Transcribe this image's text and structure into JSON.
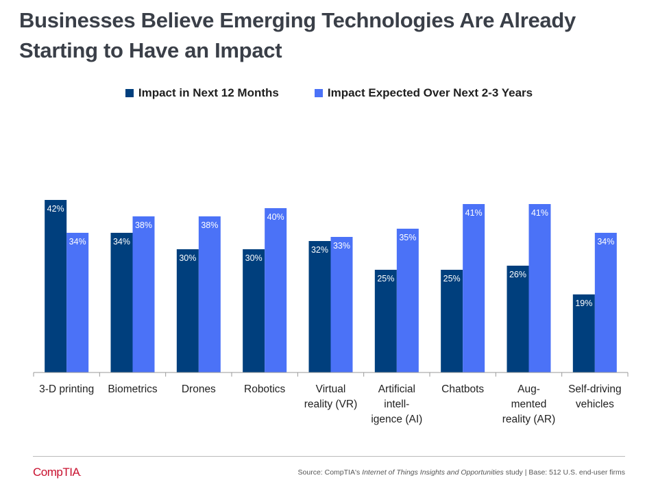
{
  "title_line1": "Businesses Believe Emerging Technologies Are Already",
  "title_line2": "Starting to Have an Impact",
  "footer": {
    "logo": "CompTIA",
    "logo_mark": ".",
    "source_prefix": "Source: CompTIA's ",
    "source_title": "Internet of Things Insights and Opportunities",
    "source_suffix": " study | Base: 512 U.S. end-user firms"
  },
  "colors": {
    "series1": "#003f7d",
    "series2": "#4b72f7",
    "title": "#3a3f48",
    "logo": "#c8102e"
  },
  "chart_data": {
    "type": "bar",
    "title": "Businesses Believe Emerging Technologies Are Already Starting to Have an Impact",
    "xlabel": "",
    "ylabel": "",
    "ylim": [
      0,
      50
    ],
    "grid": false,
    "legend_position": "top",
    "categories": [
      [
        "3-D printing"
      ],
      [
        "Biometrics"
      ],
      [
        "Drones"
      ],
      [
        "Robotics"
      ],
      [
        "Virtual",
        "reality (VR)"
      ],
      [
        "Artificial",
        "intell-",
        "igence (AI)"
      ],
      [
        "Chatbots"
      ],
      [
        "Aug-",
        "mented",
        "reality (AR)"
      ],
      [
        "Self-driving",
        "vehicles"
      ]
    ],
    "series": [
      {
        "name": "Impact in Next 12 Months",
        "values": [
          42,
          34,
          30,
          30,
          32,
          25,
          25,
          26,
          19
        ],
        "labels": [
          "42%",
          "34%",
          "30%",
          "30%",
          "32%",
          "25%",
          "25%",
          "26%",
          "19%"
        ]
      },
      {
        "name": "Impact Expected Over Next 2-3 Years",
        "values": [
          34,
          38,
          38,
          40,
          33,
          35,
          41,
          41,
          34
        ],
        "labels": [
          "34%",
          "38%",
          "38%",
          "40%",
          "33%",
          "35%",
          "41%",
          "41%",
          "34%"
        ]
      }
    ]
  }
}
